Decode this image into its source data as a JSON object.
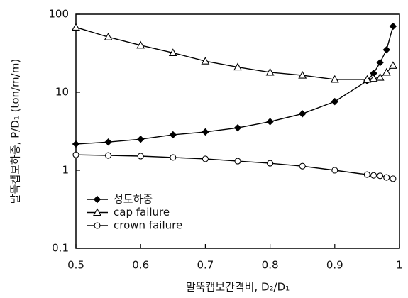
{
  "chart_data": {
    "type": "line",
    "x_label": "말뚝캡보간격비, D₂/D₁",
    "y_label": "말뚝캡보하중, P/D₁ (ton/m/m)",
    "x": [
      0.5,
      0.55,
      0.6,
      0.65,
      0.7,
      0.75,
      0.8,
      0.85,
      0.9,
      0.95,
      0.96,
      0.97,
      0.98,
      0.99
    ],
    "series": [
      {
        "name": "성토하중",
        "color": "#000000",
        "marker": "diamond",
        "values": [
          2.17,
          2.3,
          2.5,
          2.85,
          3.1,
          3.5,
          4.2,
          5.3,
          7.6,
          14,
          17.5,
          24,
          35,
          70
        ]
      },
      {
        "name": "cap failure",
        "color": "#000000",
        "marker": "triangle",
        "values": [
          68,
          51,
          40,
          32,
          25,
          21,
          18,
          16.5,
          14.6,
          14.6,
          15,
          15.5,
          18,
          22
        ]
      },
      {
        "name": "crown failure",
        "color": "#000000",
        "marker": "circle",
        "values": [
          1.58,
          1.55,
          1.52,
          1.46,
          1.4,
          1.31,
          1.23,
          1.13,
          1.0,
          0.88,
          0.86,
          0.85,
          0.81,
          0.78
        ]
      }
    ],
    "xlim": [
      0.5,
      1
    ],
    "xticks": [
      0.5,
      0.6,
      0.7,
      0.8,
      0.9,
      1
    ],
    "ylim": [
      0.1,
      100
    ],
    "yticks": [
      0.1,
      1,
      10,
      100
    ],
    "yscale": "log",
    "grid": false,
    "legend": "lower left"
  }
}
